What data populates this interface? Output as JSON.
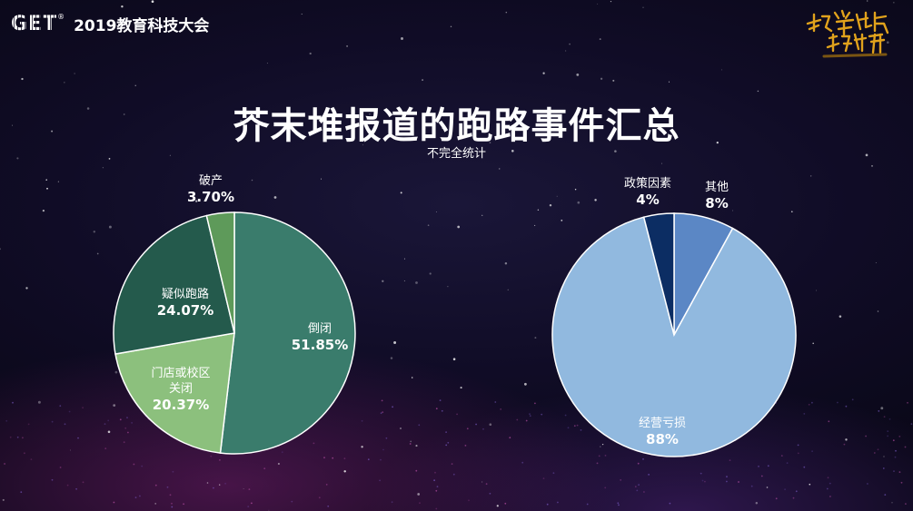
{
  "header": {
    "logo_text": "GET",
    "logo_mark": "®",
    "event_name": "2019教育科技大会",
    "motto_icon": "calligraphy-motto-icon"
  },
  "slide": {
    "title": "芥末堆报道的跑路事件汇总",
    "subtitle": "不完全统计"
  },
  "chart_data": [
    {
      "type": "pie",
      "slices": [
        {
          "label": "倒闭",
          "value": 51.85,
          "value_label": "51.85%",
          "color": "#3a7c6c"
        },
        {
          "label": "门店或校区关闭",
          "label_lines": [
            "门店或校区",
            "关闭"
          ],
          "value": 20.37,
          "value_label": "20.37%",
          "color": "#8cc07d"
        },
        {
          "label": "疑似跑路",
          "value": 24.07,
          "value_label": "24.07%",
          "color": "#245a4c"
        },
        {
          "label": "破产",
          "value": 3.7,
          "value_label": "3.70%",
          "color": "#5e9a5a"
        }
      ]
    },
    {
      "type": "pie",
      "slices": [
        {
          "label": "其他",
          "value": 8,
          "value_label": "8%",
          "color": "#5b87c5"
        },
        {
          "label": "经营亏损",
          "value": 88,
          "value_label": "88%",
          "color": "#91b9df"
        },
        {
          "label": "政策因素",
          "value": 4,
          "value_label": "4%",
          "color": "#0c2d63"
        }
      ]
    }
  ]
}
